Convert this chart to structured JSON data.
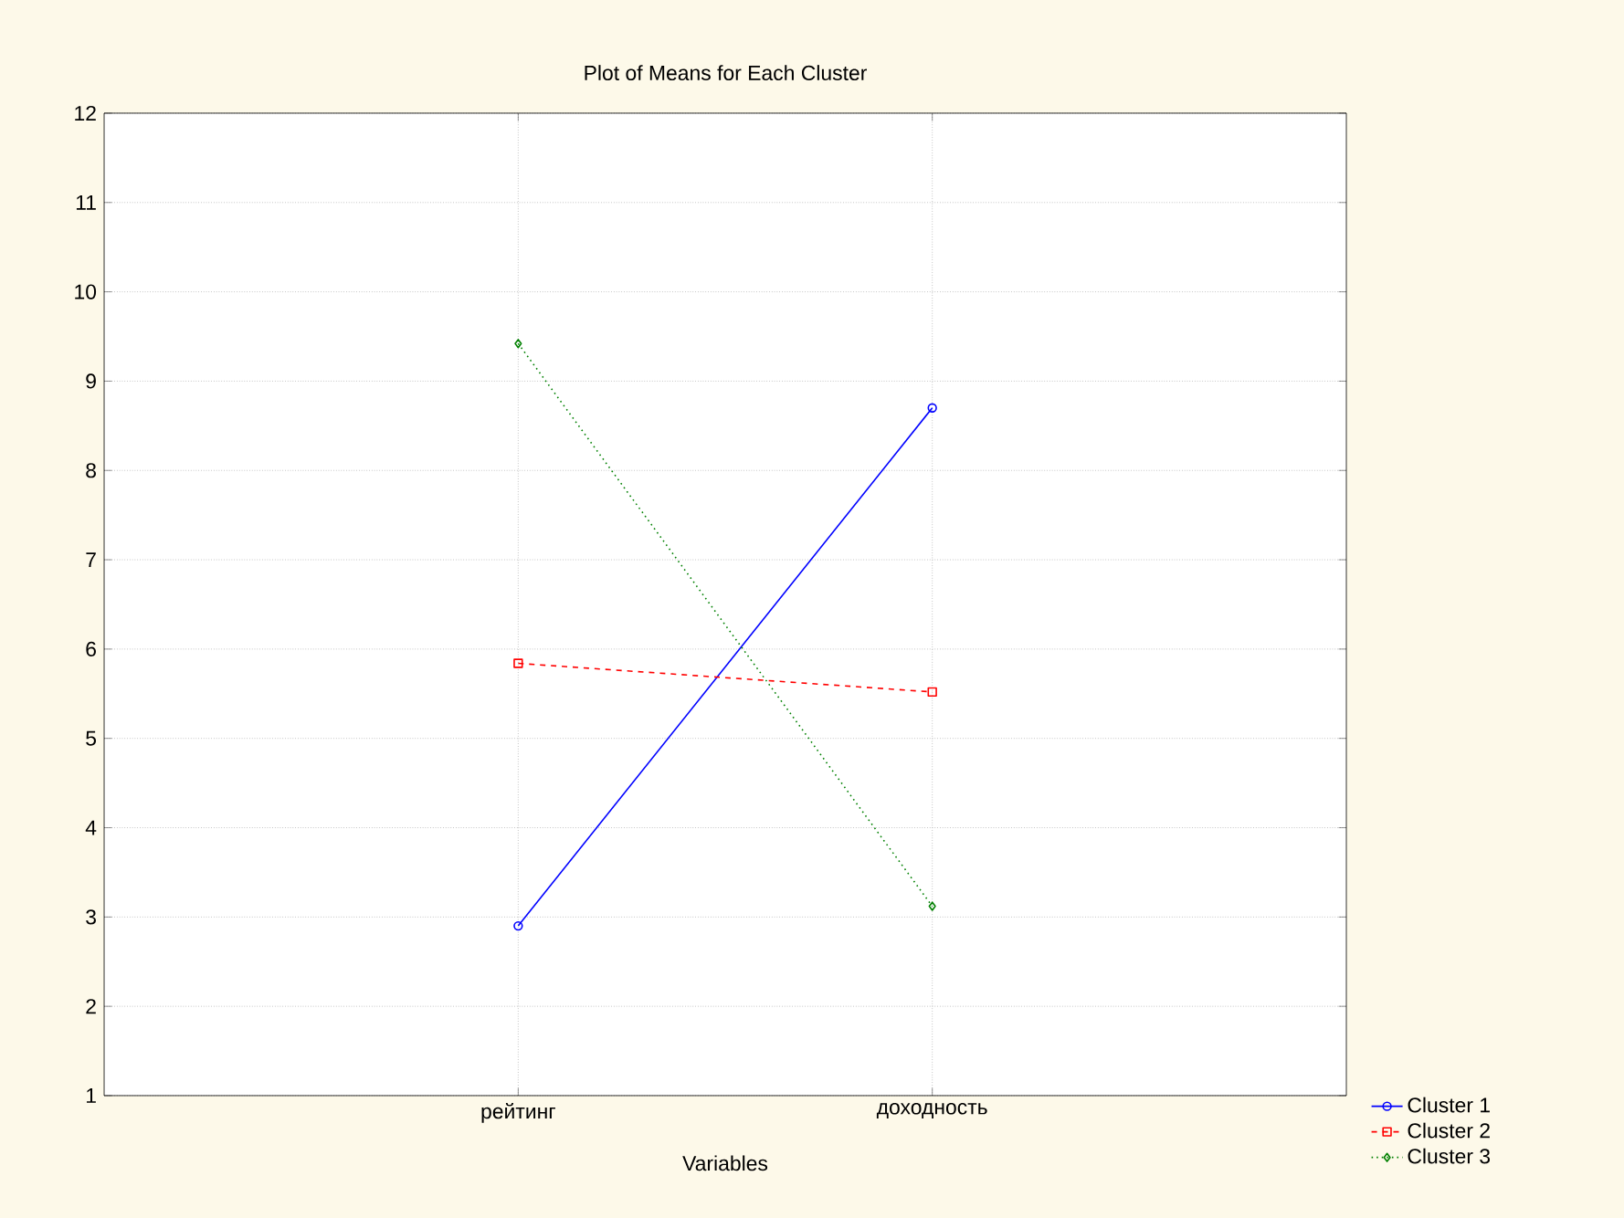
{
  "chart_data": {
    "type": "line",
    "title": "Plot of Means for Each Cluster",
    "xlabel": "Variables",
    "categories": [
      "рейтинг",
      "доходность"
    ],
    "series": [
      {
        "name": "Cluster 1",
        "color": "#0000ff",
        "values": [
          2.9,
          8.7
        ],
        "marker": "circle",
        "line_style": "solid"
      },
      {
        "name": "Cluster 2",
        "color": "#ff0000",
        "values": [
          5.84,
          5.52
        ],
        "marker": "square",
        "line_style": "dashed"
      },
      {
        "name": "Cluster 3",
        "color": "#008000",
        "values": [
          9.42,
          3.12
        ],
        "marker": "diamond",
        "line_style": "dotted"
      }
    ],
    "ylim": [
      1,
      12
    ],
    "yticks": [
      1,
      2,
      3,
      4,
      5,
      6,
      7,
      8,
      9,
      10,
      11,
      12
    ],
    "grid": true,
    "legend": "bottom right"
  }
}
